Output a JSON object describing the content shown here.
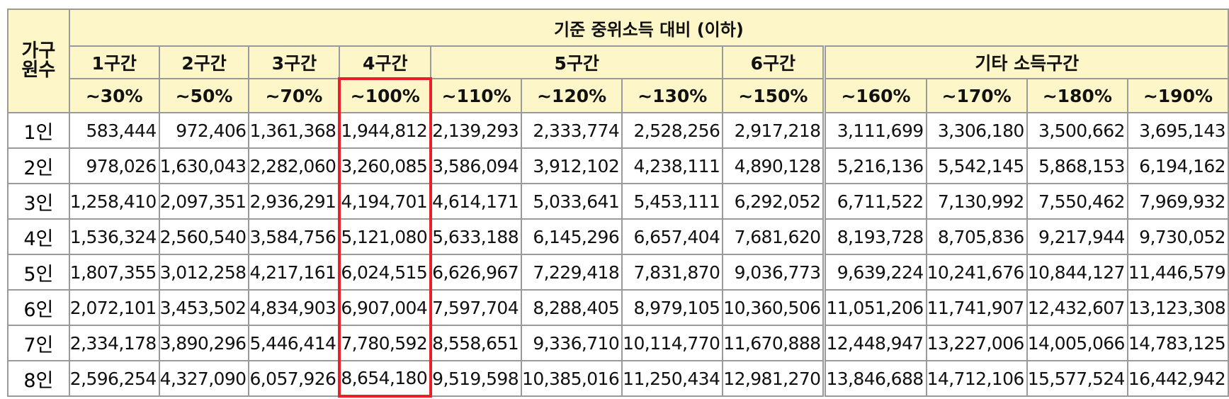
{
  "table": {
    "corner_label": "가구\n원수",
    "title": "기준 중위소득 대비 (이하)",
    "bands": [
      "1구간",
      "2구간",
      "3구간",
      "4구간",
      "5구간",
      "6구간",
      "기타 소득구간"
    ],
    "percents": [
      "~30%",
      "~50%",
      "~70%",
      "~100%",
      "~110%",
      "~120%",
      "~130%",
      "~150%",
      "~160%",
      "~170%",
      "~180%",
      "~190%"
    ],
    "rows": [
      {
        "label": "1인",
        "values": [
          "583,444",
          "972,406",
          "1,361,368",
          "1,944,812",
          "2,139,293",
          "2,333,774",
          "2,528,256",
          "2,917,218",
          "3,111,699",
          "3,306,180",
          "3,500,662",
          "3,695,143"
        ]
      },
      {
        "label": "2인",
        "values": [
          "978,026",
          "1,630,043",
          "2,282,060",
          "3,260,085",
          "3,586,094",
          "3,912,102",
          "4,238,111",
          "4,890,128",
          "5,216,136",
          "5,542,145",
          "5,868,153",
          "6,194,162"
        ]
      },
      {
        "label": "3인",
        "values": [
          "1,258,410",
          "2,097,351",
          "2,936,291",
          "4,194,701",
          "4,614,171",
          "5,033,641",
          "5,453,111",
          "6,292,052",
          "6,711,522",
          "7,130,992",
          "7,550,462",
          "7,969,932"
        ]
      },
      {
        "label": "4인",
        "values": [
          "1,536,324",
          "2,560,540",
          "3,584,756",
          "5,121,080",
          "5,633,188",
          "6,145,296",
          "6,657,404",
          "7,681,620",
          "8,193,728",
          "8,705,836",
          "9,217,944",
          "9,730,052"
        ]
      },
      {
        "label": "5인",
        "values": [
          "1,807,355",
          "3,012,258",
          "4,217,161",
          "6,024,515",
          "6,626,967",
          "7,229,418",
          "7,831,870",
          "9,036,773",
          "9,639,224",
          "10,241,676",
          "10,844,127",
          "11,446,579"
        ]
      },
      {
        "label": "6인",
        "values": [
          "2,072,101",
          "3,453,502",
          "4,834,903",
          "6,907,004",
          "7,597,704",
          "8,288,405",
          "8,979,105",
          "10,360,506",
          "11,051,206",
          "11,741,907",
          "12,432,607",
          "13,123,308"
        ]
      },
      {
        "label": "7인",
        "values": [
          "2,334,178",
          "3,890,296",
          "5,446,414",
          "7,780,592",
          "8,558,651",
          "9,336,710",
          "10,114,770",
          "11,670,888",
          "12,448,947",
          "13,227,006",
          "14,005,066",
          "14,783,125"
        ]
      },
      {
        "label": "8인",
        "values": [
          "2,596,254",
          "4,327,090",
          "6,057,926",
          "8,654,180",
          "9,519,598",
          "10,385,016",
          "11,250,434",
          "12,981,270",
          "13,846,688",
          "14,712,106",
          "15,577,524",
          "16,442,942"
        ]
      }
    ]
  },
  "colors": {
    "header_bg": "#fdf6c8",
    "grid": "#9a9a9a",
    "highlight": "#e8202a"
  }
}
